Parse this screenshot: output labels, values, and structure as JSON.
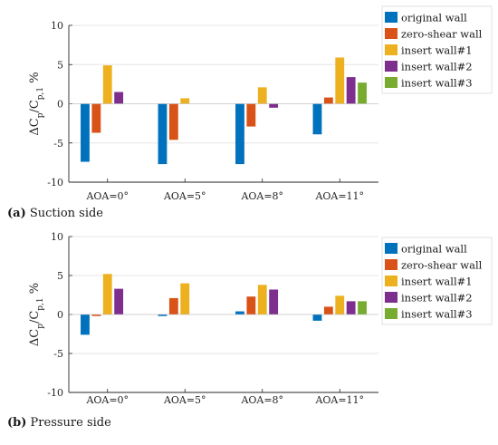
{
  "chart_data": [
    {
      "type": "bar",
      "panel": "a",
      "caption_letter": "(a)",
      "caption_text": "Suction side",
      "categories": [
        "AOA=0°",
        "AOA=5°",
        "AOA=8°",
        "AOA=11°"
      ],
      "ylabel": {
        "main": "ΔC",
        "sub1": "p",
        "mid": "/C",
        "sub2": "p,1",
        "unit": " %"
      },
      "ylim": [
        -10,
        10
      ],
      "yticks": [
        -10,
        -5,
        0,
        5,
        10
      ],
      "grid": true,
      "legend_position": "right",
      "series": [
        {
          "name": "original wall",
          "color": "#0072BD",
          "values": [
            -7.4,
            -7.7,
            -7.7,
            -3.9
          ]
        },
        {
          "name": "zero-shear wall",
          "color": "#D95319",
          "values": [
            -3.7,
            -4.6,
            -2.9,
            0.8
          ]
        },
        {
          "name": "insert wall#1",
          "color": "#EDB120",
          "values": [
            4.9,
            0.7,
            2.1,
            5.9
          ]
        },
        {
          "name": "insert wall#2",
          "color": "#7E2F8E",
          "values": [
            1.5,
            0,
            -0.5,
            3.4
          ]
        },
        {
          "name": "insert wall#3",
          "color": "#77AC30",
          "values": [
            0,
            0,
            0,
            2.7
          ]
        }
      ]
    },
    {
      "type": "bar",
      "panel": "b",
      "caption_letter": "(b)",
      "caption_text": "Pressure side",
      "categories": [
        "AOA=0°",
        "AOA=5°",
        "AOA=8°",
        "AOA=11°"
      ],
      "ylabel": {
        "main": "ΔC",
        "sub1": "p",
        "mid": "/C",
        "sub2": "p,1",
        "unit": " %"
      },
      "ylim": [
        -10,
        10
      ],
      "yticks": [
        -10,
        -5,
        0,
        5,
        10
      ],
      "grid": true,
      "legend_position": "right",
      "series": [
        {
          "name": "original wall",
          "color": "#0072BD",
          "values": [
            -2.6,
            -0.2,
            0.4,
            -0.8
          ]
        },
        {
          "name": "zero-shear wall",
          "color": "#D95319",
          "values": [
            -0.2,
            2.1,
            2.3,
            1.0
          ]
        },
        {
          "name": "insert wall#1",
          "color": "#EDB120",
          "values": [
            5.2,
            4.0,
            3.8,
            2.4
          ]
        },
        {
          "name": "insert wall#2",
          "color": "#7E2F8E",
          "values": [
            3.3,
            0,
            3.2,
            1.7
          ]
        },
        {
          "name": "insert wall#3",
          "color": "#77AC30",
          "values": [
            0,
            0,
            0,
            1.7
          ]
        }
      ]
    }
  ]
}
